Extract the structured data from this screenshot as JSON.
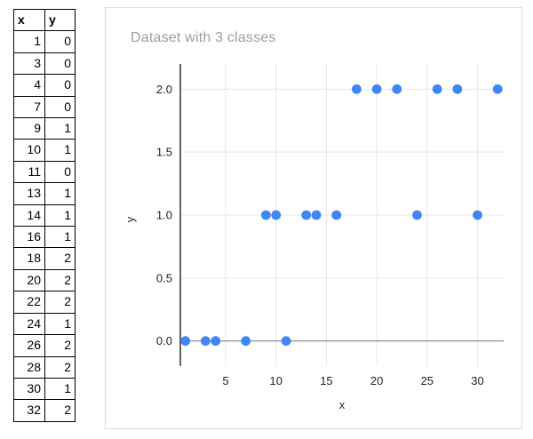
{
  "table": {
    "headers": [
      "x",
      "y"
    ],
    "rows": [
      [
        1,
        0
      ],
      [
        3,
        0
      ],
      [
        4,
        0
      ],
      [
        7,
        0
      ],
      [
        9,
        1
      ],
      [
        10,
        1
      ],
      [
        11,
        0
      ],
      [
        13,
        1
      ],
      [
        14,
        1
      ],
      [
        16,
        1
      ],
      [
        18,
        2
      ],
      [
        20,
        2
      ],
      [
        22,
        2
      ],
      [
        24,
        1
      ],
      [
        26,
        2
      ],
      [
        28,
        2
      ],
      [
        30,
        1
      ],
      [
        32,
        2
      ]
    ]
  },
  "chart": {
    "title": "Dataset with 3 classes"
  },
  "chart_data": {
    "type": "scatter",
    "title": "Dataset with 3 classes",
    "xlabel": "x",
    "ylabel": "y",
    "points": [
      [
        1,
        0
      ],
      [
        3,
        0
      ],
      [
        4,
        0
      ],
      [
        7,
        0
      ],
      [
        9,
        1
      ],
      [
        10,
        1
      ],
      [
        11,
        0
      ],
      [
        13,
        1
      ],
      [
        14,
        1
      ],
      [
        16,
        1
      ],
      [
        18,
        2
      ],
      [
        20,
        2
      ],
      [
        22,
        2
      ],
      [
        24,
        1
      ],
      [
        26,
        2
      ],
      [
        28,
        2
      ],
      [
        30,
        1
      ],
      [
        32,
        2
      ]
    ],
    "xlim": [
      0.5,
      32.6
    ],
    "ylim": [
      -0.2,
      2.2
    ],
    "x_ticks": [
      5,
      10,
      15,
      20,
      25,
      30
    ],
    "x_tick_labels": [
      "5",
      "10",
      "15",
      "20",
      "25",
      "30"
    ],
    "y_ticks": [
      0,
      0.5,
      1,
      1.5,
      2
    ],
    "y_tick_labels": [
      "0.0",
      "0.5",
      "1.0",
      "1.5",
      "2.0"
    ],
    "grid": true,
    "legend": "none",
    "colors": {
      "point": "#4285f4",
      "gridline": "#e6e6e6",
      "baseline": "#848484",
      "axis": "#212121",
      "tick_label": "#1f1f1f",
      "axis_title": "#1f1f1f",
      "title": "#9e9e9e",
      "card_border": "#dadce0"
    }
  }
}
